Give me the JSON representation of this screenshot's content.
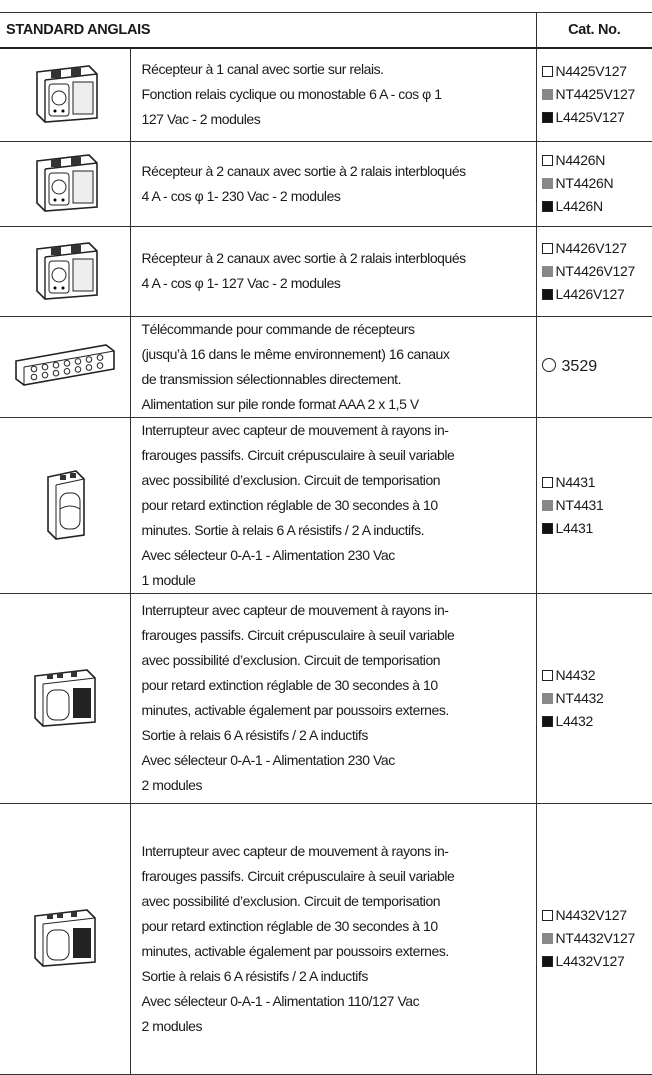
{
  "table": {
    "header": {
      "title": "STANDARD ANGLAIS",
      "cat": "Cat. No."
    },
    "rows": [
      {
        "lines": [
          "Récepteur à 1 canal avec sortie sur relais.",
          "Fonction relais cyclique ou monostable 6 A - cos φ 1",
          "127 Vac - 2 modules"
        ],
        "codes": [
          "N4425V127",
          "NT4425V127",
          "L4425V127"
        ]
      },
      {
        "lines": [
          "Récepteur à 2 canaux avec sortie à 2 ralais interbloqués",
          "4 A - cos φ 1- 230 Vac - 2 modules"
        ],
        "codes": [
          "N4426N",
          "NT4426N",
          "L4426N"
        ]
      },
      {
        "lines": [
          "Récepteur à 2 canaux avec sortie à 2 ralais interbloqués",
          "4 A - cos φ 1- 127 Vac - 2 modules"
        ],
        "codes": [
          "N4426V127",
          "NT4426V127",
          "L4426V127"
        ]
      },
      {
        "lines": [
          "Télécommande pour commande de récepteurs",
          "(jusqu’à 16 dans le même environnement) 16 canaux",
          "de transmission sélectionnables directement.",
          "Alimentation sur pile ronde format AAA 2 x 1,5 V"
        ],
        "codes": [
          "3529"
        ]
      },
      {
        "lines": [
          "Interrupteur avec capteur de mouvement à rayons in-",
          "frarouges passifs. Circuit crépusculaire à seuil variable",
          "avec possibilité d’exclusion. Circuit de temporisation",
          "pour retard extinction réglable de 30 secondes à 10",
          "minutes. Sortie à relais 6 A résistifs / 2 A inductifs.",
          "Avec sélecteur 0-A-1 - Alimentation 230 Vac",
          "1 module"
        ],
        "codes": [
          "N4431",
          "NT4431",
          "L4431"
        ]
      },
      {
        "lines": [
          "Interrupteur avec capteur de mouvement à rayons in-",
          "frarouges passifs. Circuit crépusculaire à seuil variable",
          "avec possibilité d’exclusion. Circuit de temporisation",
          "pour retard extinction réglable de 30 secondes à 10",
          "minutes, activable également par poussoirs externes.",
          "Sortie à relais 6 A résistifs / 2 A inductifs",
          "Avec sélecteur 0-A-1 - Alimentation 230 Vac",
          "2 modules"
        ],
        "codes": [
          "N4432",
          "NT4432",
          "L4432"
        ]
      },
      {
        "lines": [
          "Interrupteur avec capteur de mouvement à rayons in-",
          "frarouges passifs. Circuit crépusculaire à seuil variable",
          "avec possibilité d’exclusion. Circuit de temporisation",
          "pour retard extinction réglable de 30 secondes à 10",
          "minutes, activable également par poussoirs externes.",
          "Sortie à relais 6 A résistifs / 2 A inductifs",
          "Avec sélecteur 0-A-1 - Alimentation 110/127 Vac",
          "2 modules"
        ],
        "codes": [
          "N4432V127",
          "NT4432V127",
          "L4432V127"
        ]
      }
    ]
  }
}
